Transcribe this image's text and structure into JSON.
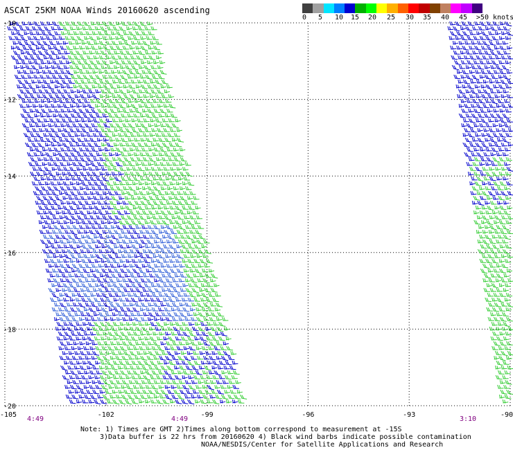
{
  "title": "ASCAT 25KM NOAA Winds 20160620 ascending",
  "colorbar": {
    "colors": [
      "#404040",
      "#a0a0a0",
      "#00e5ff",
      "#0080ff",
      "#0000d0",
      "#00b000",
      "#00ff00",
      "#ffff00",
      "#ffb000",
      "#ff6000",
      "#ff0000",
      "#c00000",
      "#804000",
      "#c08060",
      "#ff00ff",
      "#c000ff",
      "#400080"
    ],
    "labels": [
      "0",
      "5",
      "10",
      "15",
      "20",
      "25",
      "30",
      "35",
      "40",
      "45",
      ">50 knots"
    ]
  },
  "map": {
    "lon_range": [
      -105,
      -90
    ],
    "lat_range": [
      -20,
      -10
    ],
    "lon_ticks": [
      "-105",
      "-102",
      "-99",
      "-96",
      "-93",
      "-90"
    ],
    "lat_ticks": [
      "-10",
      "-12",
      "-14",
      "-16",
      "-18",
      "-20"
    ],
    "barb_colors": {
      "blue": "#0000cc",
      "green": "#33cc33",
      "light_blue": "#2a5ad6"
    }
  },
  "pass_times": [
    "4:49",
    "4:49",
    "3:10"
  ],
  "footer": {
    "line1": "Note: 1) Times are GMT 2)Times along bottom correspond to measurement at -15S",
    "line2": "3)Data buffer is 22 hrs from 20160620 4) Black wind barbs indicate possible contamination",
    "line3": "NOAA/NESDIS/Center for Satellite Applications and Research"
  }
}
